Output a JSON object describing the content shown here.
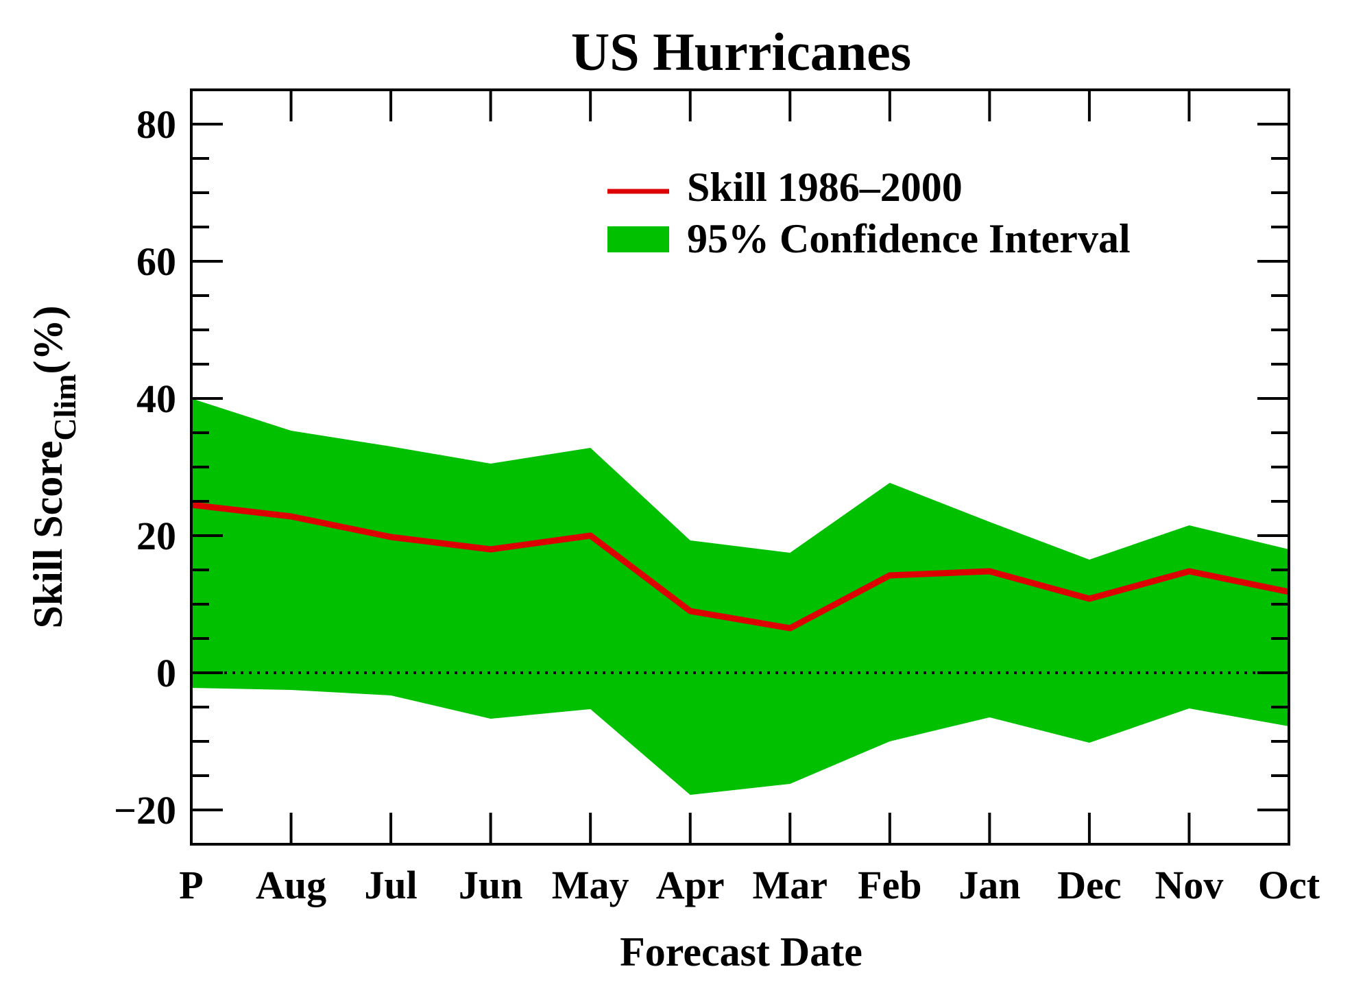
{
  "chart_data": {
    "type": "line",
    "title": "US Hurricanes",
    "xlabel": "Forecast Date",
    "ylabel_main": "Skill Score",
    "ylabel_sub": "Clim",
    "ylabel_unit": "(%)",
    "categories": [
      "P",
      "Aug",
      "Jul",
      "Jun",
      "May",
      "Apr",
      "Mar",
      "Feb",
      "Jan",
      "Dec",
      "Nov",
      "Oct"
    ],
    "ylim": [
      -25,
      85
    ],
    "yticks": [
      -20,
      0,
      20,
      40,
      60,
      80
    ],
    "ytick_labels": [
      "−20",
      "0",
      "20",
      "40",
      "60",
      "80"
    ],
    "series": [
      {
        "name": "Skill 1986–2000",
        "color": "#dd0000",
        "values": [
          24.5,
          22.8,
          19.8,
          18.0,
          20.0,
          9.0,
          6.5,
          14.2,
          14.8,
          10.8,
          14.8,
          11.8
        ]
      }
    ],
    "band": {
      "name": "95% Confidence Interval",
      "color": "#00c000",
      "upper": [
        40.0,
        35.3,
        33.0,
        30.5,
        32.8,
        19.3,
        17.5,
        27.7,
        22.0,
        16.5,
        21.5,
        18.0
      ],
      "lower": [
        -2.2,
        -2.5,
        -3.3,
        -6.7,
        -5.3,
        -17.8,
        -16.2,
        -10.0,
        -6.5,
        -10.2,
        -5.2,
        -7.8
      ]
    },
    "reference_line": {
      "y": 0,
      "style": "dotted"
    },
    "legend_position": "top-right",
    "grid": false
  }
}
